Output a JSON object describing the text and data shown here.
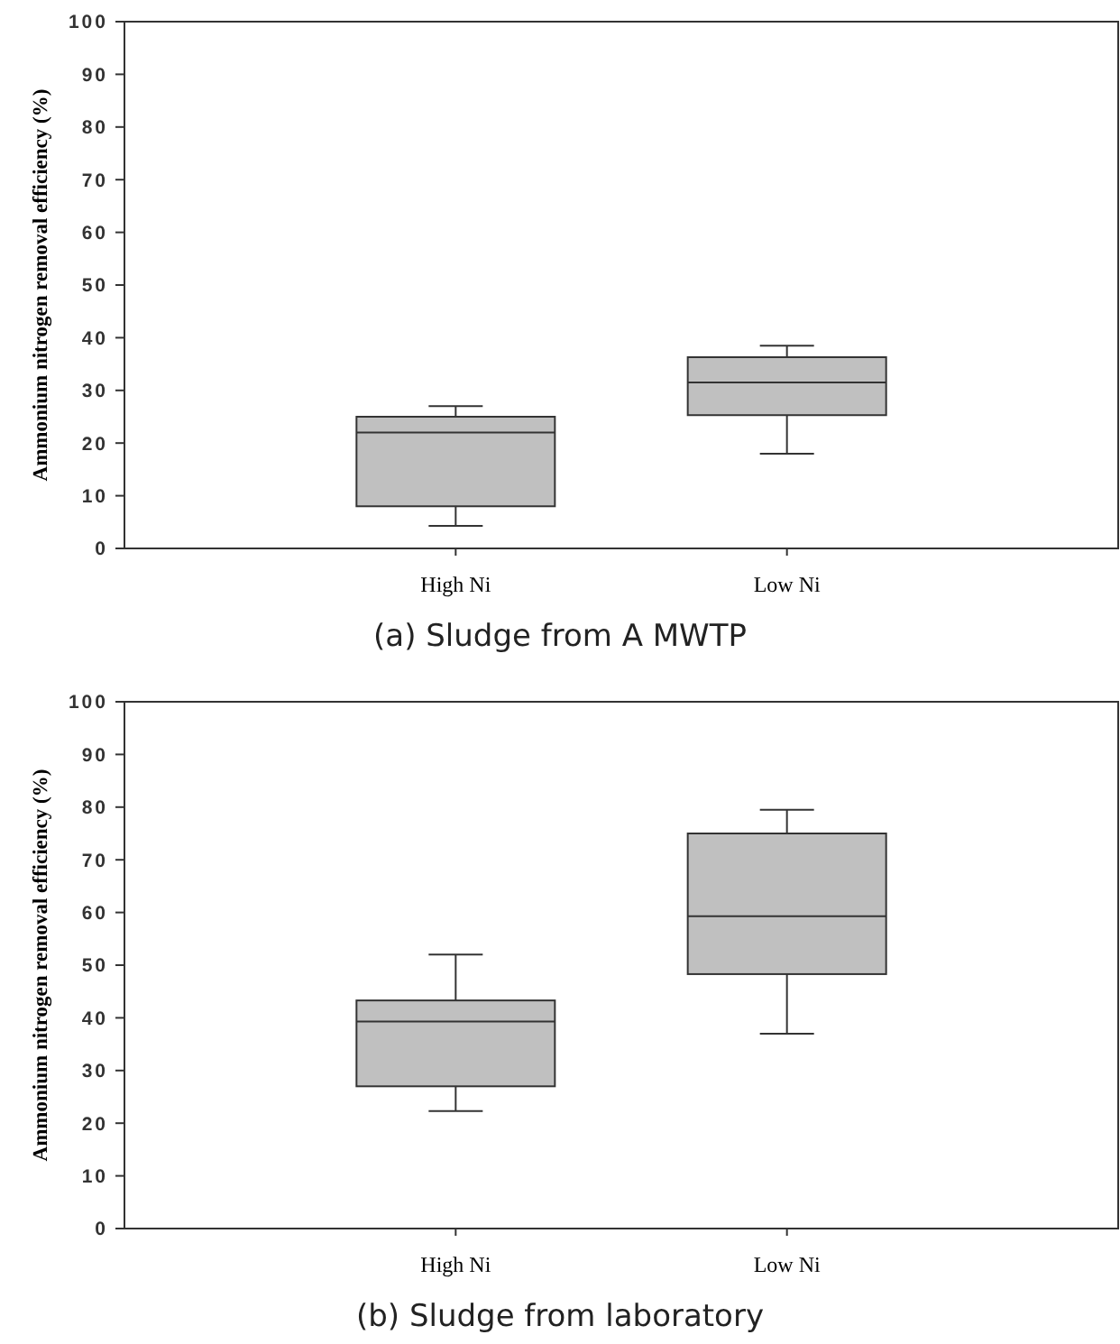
{
  "chart_data": [
    {
      "type": "box",
      "title": "(a) Sludge from A MWTP",
      "ylabel": "Ammonium nitrogen removal efficiency (%)",
      "categories": [
        "High Ni",
        "Low Ni"
      ],
      "color": "#c0c0c0",
      "ylim": [
        0,
        100
      ],
      "yticks": [
        0,
        10,
        20,
        30,
        40,
        50,
        60,
        70,
        80,
        90,
        100
      ],
      "grid": false,
      "boxes": [
        {
          "low": 4.3,
          "q1": 8,
          "median": 22,
          "q3": 25,
          "high": 27
        },
        {
          "low": 18,
          "q1": 25.3,
          "median": 31.5,
          "q3": 36.3,
          "high": 38.5
        }
      ]
    },
    {
      "type": "box",
      "title": "(b) Sludge from laboratory",
      "ylabel": "Ammonium nitrogen removal efficiency (%)",
      "categories": [
        "High Ni",
        "Low Ni"
      ],
      "color": "#c0c0c0",
      "ylim": [
        0,
        100
      ],
      "yticks": [
        0,
        10,
        20,
        30,
        40,
        50,
        60,
        70,
        80,
        90,
        100
      ],
      "grid": false,
      "boxes": [
        {
          "low": 22.3,
          "q1": 27,
          "median": 39.3,
          "q3": 43.3,
          "high": 52
        },
        {
          "low": 37,
          "q1": 48.3,
          "median": 59.3,
          "q3": 75,
          "high": 79.5
        }
      ]
    }
  ]
}
